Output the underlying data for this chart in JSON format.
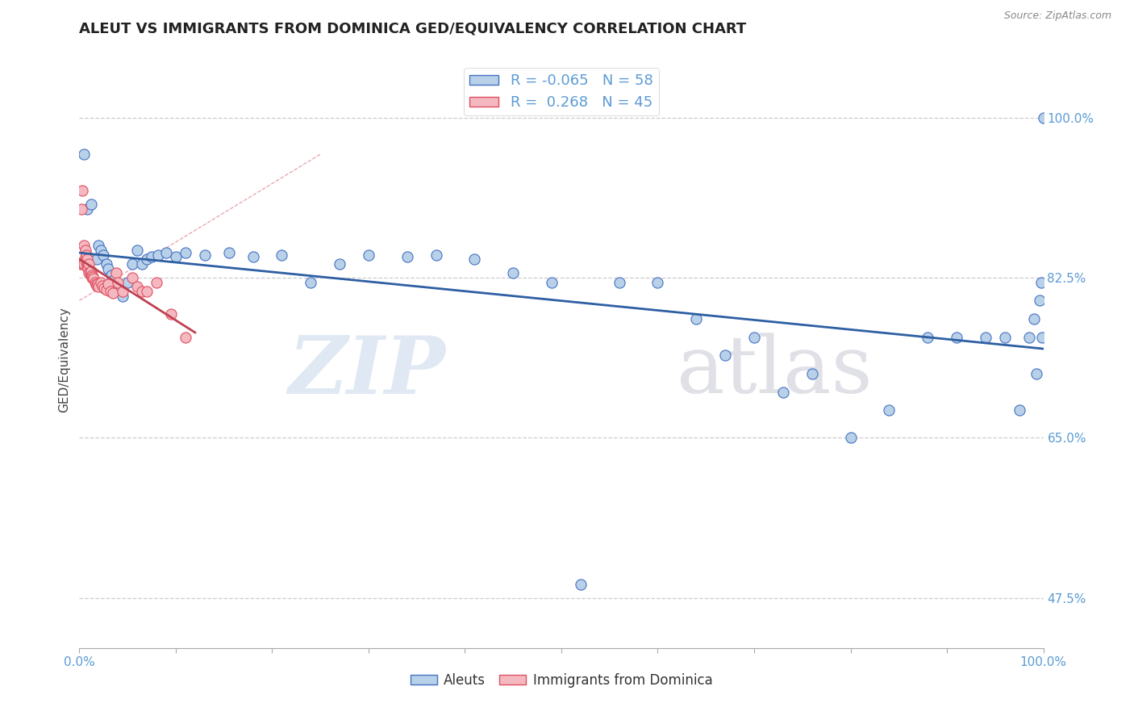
{
  "title": "ALEUT VS IMMIGRANTS FROM DOMINICA GED/EQUIVALENCY CORRELATION CHART",
  "source": "Source: ZipAtlas.com",
  "ylabel": "GED/Equivalency",
  "legend_label_1": "Aleuts",
  "legend_label_2": "Immigrants from Dominica",
  "R1": -0.065,
  "N1": 58,
  "R2": 0.268,
  "N2": 45,
  "xmin": 0.0,
  "xmax": 1.0,
  "ymin": 0.42,
  "ymax": 1.05,
  "ylabel_ticks": [
    "47.5%",
    "65.0%",
    "82.5%",
    "100.0%"
  ],
  "ylabel_ticks_vals": [
    0.475,
    0.65,
    0.825,
    1.0
  ],
  "xtick_vals": [
    0.0,
    0.1,
    0.2,
    0.3,
    0.4,
    0.5,
    0.6,
    0.7,
    0.8,
    0.9,
    1.0
  ],
  "color_aleuts_fill": "#b8d0e8",
  "color_aleuts_edge": "#4472c4",
  "color_dominica_fill": "#f4b8c0",
  "color_dominica_edge": "#e05060",
  "color_line_aleuts": "#2e5fa3",
  "color_line_dominica": "#c04050",
  "color_diag": "#ddaaaa",
  "background_color": "#ffffff",
  "watermark_zip": "ZIP",
  "watermark_atlas": "atlas",
  "grid_color": "#cccccc",
  "aleuts_x": [
    0.005,
    0.008,
    0.012,
    0.018,
    0.02,
    0.022,
    0.025,
    0.028,
    0.03,
    0.033,
    0.036,
    0.039,
    0.042,
    0.045,
    0.05,
    0.055,
    0.06,
    0.065,
    0.07,
    0.075,
    0.082,
    0.09,
    0.1,
    0.11,
    0.13,
    0.155,
    0.18,
    0.21,
    0.24,
    0.27,
    0.3,
    0.34,
    0.37,
    0.41,
    0.45,
    0.49,
    0.52,
    0.56,
    0.6,
    0.64,
    0.67,
    0.7,
    0.73,
    0.76,
    0.8,
    0.84,
    0.88,
    0.91,
    0.94,
    0.96,
    0.975,
    0.985,
    0.99,
    0.993,
    0.996,
    0.998,
    0.999,
    1.0
  ],
  "aleuts_y": [
    0.96,
    0.9,
    0.905,
    0.845,
    0.86,
    0.855,
    0.85,
    0.84,
    0.835,
    0.828,
    0.822,
    0.818,
    0.81,
    0.805,
    0.82,
    0.84,
    0.855,
    0.84,
    0.845,
    0.848,
    0.85,
    0.852,
    0.848,
    0.852,
    0.85,
    0.852,
    0.848,
    0.85,
    0.82,
    0.84,
    0.85,
    0.848,
    0.85,
    0.845,
    0.83,
    0.82,
    0.49,
    0.82,
    0.82,
    0.78,
    0.74,
    0.76,
    0.7,
    0.72,
    0.65,
    0.68,
    0.76,
    0.76,
    0.76,
    0.76,
    0.68,
    0.76,
    0.78,
    0.72,
    0.8,
    0.82,
    0.76,
    1.0
  ],
  "dominica_x": [
    0.001,
    0.002,
    0.003,
    0.004,
    0.005,
    0.005,
    0.006,
    0.006,
    0.007,
    0.007,
    0.008,
    0.008,
    0.009,
    0.009,
    0.01,
    0.01,
    0.011,
    0.012,
    0.012,
    0.013,
    0.013,
    0.014,
    0.015,
    0.016,
    0.017,
    0.018,
    0.019,
    0.02,
    0.022,
    0.024,
    0.026,
    0.028,
    0.03,
    0.032,
    0.035,
    0.038,
    0.04,
    0.045,
    0.055,
    0.06,
    0.065,
    0.07,
    0.08,
    0.095,
    0.11
  ],
  "dominica_y": [
    0.84,
    0.9,
    0.92,
    0.84,
    0.86,
    0.84,
    0.855,
    0.848,
    0.85,
    0.842,
    0.845,
    0.838,
    0.838,
    0.835,
    0.84,
    0.83,
    0.83,
    0.828,
    0.832,
    0.825,
    0.828,
    0.826,
    0.824,
    0.82,
    0.818,
    0.816,
    0.818,
    0.815,
    0.82,
    0.816,
    0.814,
    0.812,
    0.818,
    0.81,
    0.808,
    0.83,
    0.82,
    0.81,
    0.825,
    0.815,
    0.81,
    0.81,
    0.82,
    0.785,
    0.76
  ]
}
